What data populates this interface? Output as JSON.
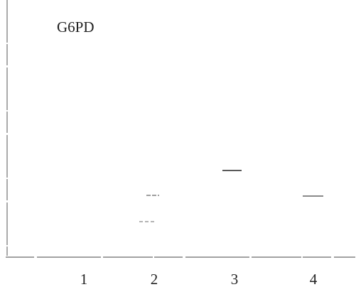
{
  "title": "G6PD",
  "lanes": [
    "1",
    "2",
    "3",
    "4"
  ]
}
